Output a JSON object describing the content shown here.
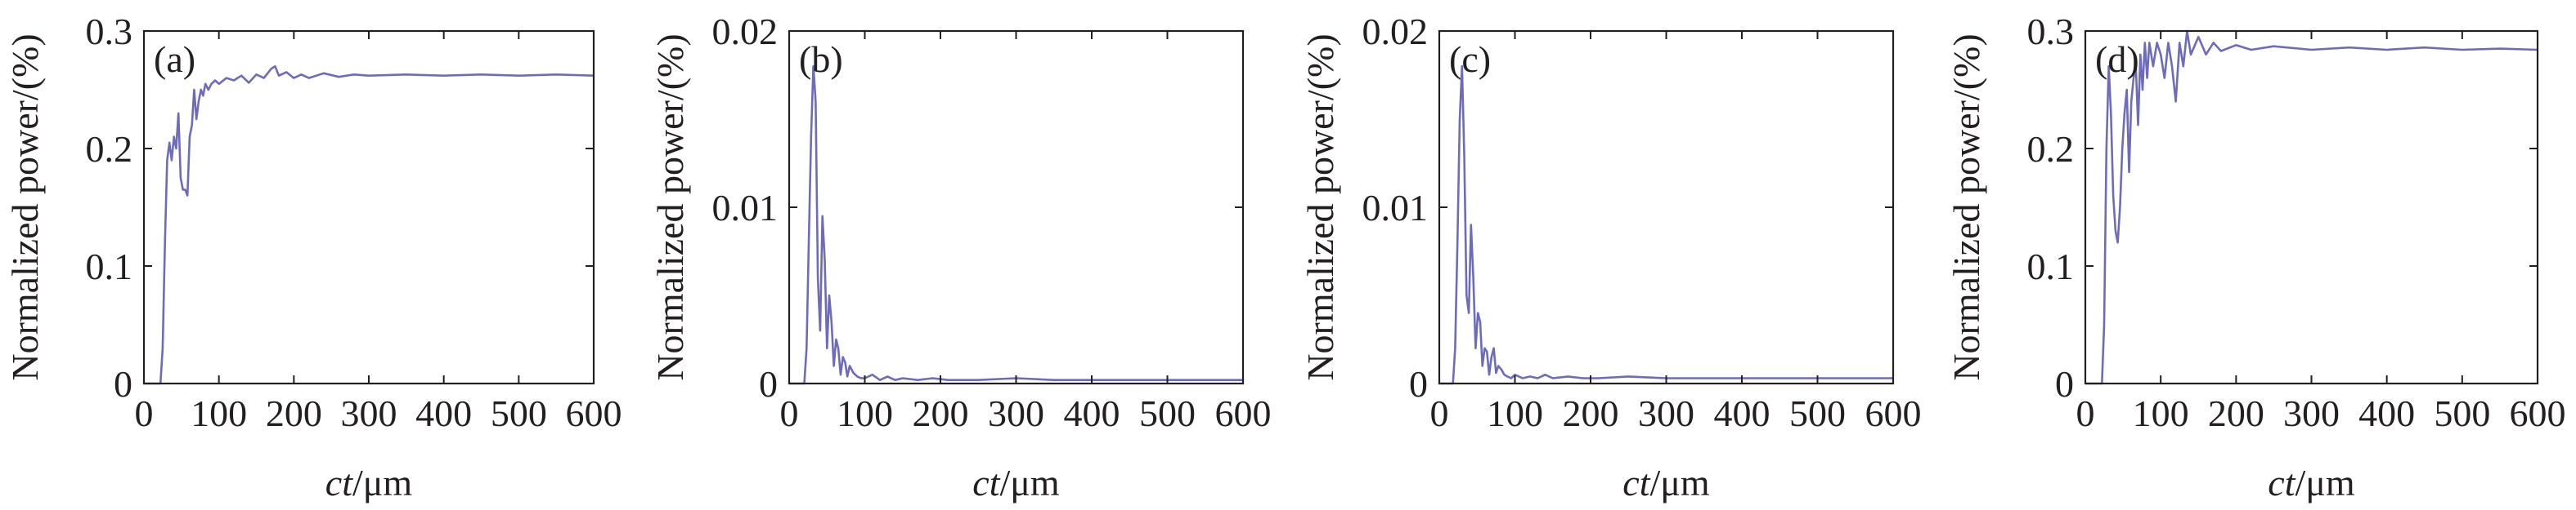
{
  "colors": {
    "series": "#6e6cba",
    "axes": "#231f20",
    "background": "#ffffff"
  },
  "chart_data": [
    {
      "type": "line",
      "panel_label": "(a)",
      "xlabel_italic": "ct",
      "xlabel_rest": "/μm",
      "ylabel": "Normalized power/(%)",
      "xlim": [
        0,
        600
      ],
      "ylim": [
        0,
        0.3
      ],
      "xticks": [
        0,
        100,
        200,
        300,
        400,
        500,
        600
      ],
      "yticks": [
        0,
        0.1,
        0.2,
        0.3
      ],
      "ytick_labels": [
        "0",
        "0.1",
        "0.2",
        "0.3"
      ],
      "grid": false,
      "x": [
        0,
        22,
        25,
        28,
        31,
        34,
        37,
        40,
        43,
        46,
        49,
        52,
        55,
        58,
        61,
        64,
        67,
        70,
        73,
        76,
        79,
        82,
        86,
        90,
        95,
        100,
        110,
        120,
        130,
        140,
        150,
        160,
        170,
        175,
        180,
        190,
        200,
        210,
        220,
        240,
        260,
        280,
        300,
        350,
        400,
        450,
        500,
        550,
        600
      ],
      "y": [
        0,
        0,
        0.03,
        0.12,
        0.19,
        0.205,
        0.19,
        0.21,
        0.2,
        0.23,
        0.175,
        0.165,
        0.165,
        0.16,
        0.21,
        0.22,
        0.25,
        0.225,
        0.24,
        0.25,
        0.245,
        0.255,
        0.25,
        0.255,
        0.258,
        0.255,
        0.26,
        0.258,
        0.262,
        0.256,
        0.263,
        0.26,
        0.268,
        0.27,
        0.262,
        0.265,
        0.26,
        0.263,
        0.26,
        0.264,
        0.261,
        0.263,
        0.262,
        0.263,
        0.262,
        0.263,
        0.262,
        0.263,
        0.262
      ]
    },
    {
      "type": "line",
      "panel_label": "(b)",
      "xlabel_italic": "ct",
      "xlabel_rest": "/μm",
      "ylabel": "Normalized power/(%)",
      "xlim": [
        0,
        600
      ],
      "ylim": [
        0,
        0.02
      ],
      "xticks": [
        0,
        100,
        200,
        300,
        400,
        500,
        600
      ],
      "yticks": [
        0,
        0.01,
        0.02
      ],
      "ytick_labels": [
        "0",
        "0.01",
        "0.02"
      ],
      "grid": false,
      "x": [
        0,
        20,
        23,
        26,
        29,
        32,
        35,
        38,
        41,
        44,
        47,
        50,
        53,
        56,
        59,
        62,
        65,
        68,
        71,
        74,
        77,
        80,
        85,
        90,
        95,
        100,
        110,
        120,
        130,
        140,
        150,
        170,
        190,
        210,
        250,
        300,
        350,
        400,
        450,
        500,
        550,
        600
      ],
      "y": [
        0,
        0,
        0.002,
        0.008,
        0.014,
        0.018,
        0.016,
        0.006,
        0.003,
        0.0095,
        0.007,
        0.002,
        0.005,
        0.0035,
        0.001,
        0.0025,
        0.002,
        0.0005,
        0.0015,
        0.0012,
        0.0004,
        0.001,
        0.0006,
        0.0004,
        0.0003,
        0.0003,
        0.0005,
        0.0002,
        0.0004,
        0.0002,
        0.0003,
        0.0002,
        0.0003,
        0.0002,
        0.0002,
        0.0003,
        0.0002,
        0.0002,
        0.0002,
        0.0002,
        0.0002,
        0.0002
      ]
    },
    {
      "type": "line",
      "panel_label": "(c)",
      "xlabel_italic": "ct",
      "xlabel_rest": "/μm",
      "ylabel": "Normalized power/(%)",
      "xlim": [
        0,
        600
      ],
      "ylim": [
        0,
        0.02
      ],
      "xticks": [
        0,
        100,
        200,
        300,
        400,
        500,
        600
      ],
      "yticks": [
        0,
        0.01,
        0.02
      ],
      "ytick_labels": [
        "0",
        "0.01",
        "0.02"
      ],
      "grid": false,
      "x": [
        0,
        18,
        21,
        24,
        27,
        30,
        33,
        36,
        39,
        42,
        45,
        48,
        51,
        54,
        57,
        60,
        63,
        66,
        69,
        72,
        75,
        78,
        82,
        86,
        90,
        95,
        100,
        110,
        120,
        130,
        140,
        150,
        170,
        190,
        210,
        250,
        300,
        350,
        400,
        450,
        500,
        550,
        600
      ],
      "y": [
        0,
        0,
        0.002,
        0.008,
        0.015,
        0.018,
        0.013,
        0.005,
        0.004,
        0.009,
        0.006,
        0.002,
        0.004,
        0.0035,
        0.001,
        0.002,
        0.0018,
        0.0005,
        0.0015,
        0.002,
        0.0006,
        0.001,
        0.0008,
        0.0005,
        0.0004,
        0.0003,
        0.0005,
        0.0003,
        0.0004,
        0.0003,
        0.0005,
        0.0003,
        0.0004,
        0.0003,
        0.0003,
        0.0004,
        0.0003,
        0.0003,
        0.0003,
        0.0003,
        0.0003,
        0.0003,
        0.0003
      ]
    },
    {
      "type": "line",
      "panel_label": "(d)",
      "xlabel_italic": "ct",
      "xlabel_rest": "/μm",
      "ylabel": "Normalized power/(%)",
      "xlim": [
        0,
        600
      ],
      "ylim": [
        0,
        0.3
      ],
      "xticks": [
        0,
        100,
        200,
        300,
        400,
        500,
        600
      ],
      "yticks": [
        0,
        0.1,
        0.2,
        0.3
      ],
      "ytick_labels": [
        "0",
        "0.1",
        "0.2",
        "0.3"
      ],
      "grid": false,
      "x": [
        0,
        22,
        25,
        28,
        31,
        34,
        37,
        40,
        43,
        46,
        49,
        52,
        55,
        58,
        61,
        64,
        67,
        70,
        73,
        76,
        79,
        82,
        85,
        90,
        95,
        100,
        105,
        110,
        115,
        120,
        125,
        130,
        135,
        140,
        150,
        160,
        170,
        180,
        200,
        220,
        250,
        300,
        350,
        400,
        450,
        500,
        550,
        600
      ],
      "y": [
        0,
        0,
        0.05,
        0.2,
        0.27,
        0.23,
        0.16,
        0.13,
        0.12,
        0.15,
        0.2,
        0.23,
        0.25,
        0.18,
        0.24,
        0.26,
        0.27,
        0.22,
        0.28,
        0.25,
        0.29,
        0.26,
        0.29,
        0.27,
        0.29,
        0.28,
        0.26,
        0.29,
        0.27,
        0.24,
        0.29,
        0.27,
        0.3,
        0.28,
        0.295,
        0.28,
        0.29,
        0.283,
        0.288,
        0.284,
        0.287,
        0.284,
        0.286,
        0.284,
        0.286,
        0.284,
        0.285,
        0.284
      ]
    }
  ]
}
